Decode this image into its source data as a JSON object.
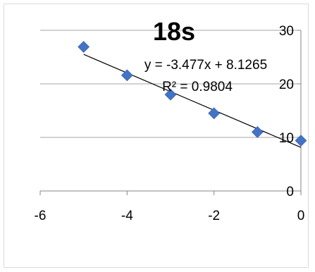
{
  "chart_data": {
    "type": "scatter",
    "title": "18s",
    "xlabel": "",
    "ylabel": "",
    "xlim": [
      -6,
      0
    ],
    "ylim": [
      0,
      30
    ],
    "xticks": [
      -6,
      -4,
      -2,
      0
    ],
    "yticks": [
      0,
      10,
      20,
      30
    ],
    "x_tick_labels": [
      "-6",
      "-4",
      "-2",
      "0"
    ],
    "y_tick_labels": [
      "0",
      "10",
      "20",
      "30"
    ],
    "grid": "horizontal",
    "legend": "none",
    "series": [
      {
        "x": [
          -5,
          -4,
          -3,
          -2,
          -1,
          0
        ],
        "y": [
          26.9,
          21.6,
          18.0,
          14.5,
          11.0,
          9.4
        ],
        "marker": "diamond",
        "color": "#4472c4"
      }
    ],
    "trendline": {
      "type": "linear",
      "slope": -3.477,
      "intercept": 8.1265,
      "x_range": [
        -5,
        0
      ],
      "color": "#000000",
      "equation_label": "y = -3.477x + 8.1265",
      "r2_label": "R² = 0.9804"
    }
  }
}
